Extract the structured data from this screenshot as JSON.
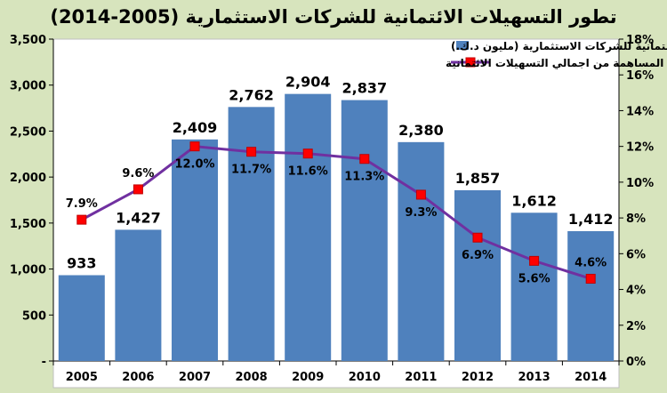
{
  "title": "تطور التسهيلات الائتمانية للشركات الاستثمارية (2005-2014)",
  "colors": {
    "frame": "#d7e4bd",
    "plot_bg": "#ffffff",
    "bar": "#4f81bd",
    "line": "#7030a0",
    "marker": "#ff0000"
  },
  "chart_data": {
    "type": "bar",
    "categories": [
      "2005",
      "2006",
      "2007",
      "2008",
      "2009",
      "2010",
      "2011",
      "2012",
      "2013",
      "2014"
    ],
    "series": [
      {
        "name": "التسهيلات الائتمانية للشركات الاستثمارية (مليون د.ك.)",
        "type": "bar",
        "axis": "left",
        "values": [
          933,
          1427,
          2409,
          2762,
          2904,
          2837,
          2380,
          1857,
          1612,
          1412
        ],
        "labels": [
          "933",
          "1,427",
          "2,409",
          "2,762",
          "2,904",
          "2,837",
          "2,380",
          "1,857",
          "1,612",
          "1,412"
        ]
      },
      {
        "name": "نسبة المساهمة من اجمالي التسهيلات الائتمانية",
        "type": "line",
        "axis": "right",
        "values": [
          7.9,
          9.6,
          12.0,
          11.7,
          11.6,
          11.3,
          9.3,
          6.9,
          5.6,
          4.6
        ],
        "labels": [
          "7.9%",
          "9.6%",
          "12.0%",
          "11.7%",
          "11.6%",
          "11.3%",
          "9.3%",
          "6.9%",
          "5.6%",
          "4.6%"
        ]
      }
    ],
    "left_axis": {
      "ylim": [
        0,
        3500
      ],
      "ticks": [
        0,
        500,
        1000,
        1500,
        2000,
        2500,
        3000,
        3500
      ],
      "tick_labels": [
        "-",
        "500",
        "1,000",
        "1,500",
        "2,000",
        "2,500",
        "3,000",
        "3,500"
      ]
    },
    "right_axis": {
      "ylim": [
        0,
        18
      ],
      "ticks": [
        0,
        2,
        4,
        6,
        8,
        10,
        12,
        14,
        16,
        18
      ],
      "tick_labels": [
        "0%",
        "2%",
        "4%",
        "6%",
        "8%",
        "10%",
        "12%",
        "14%",
        "16%",
        "18%"
      ]
    },
    "grid": false,
    "legend": "top-center"
  }
}
